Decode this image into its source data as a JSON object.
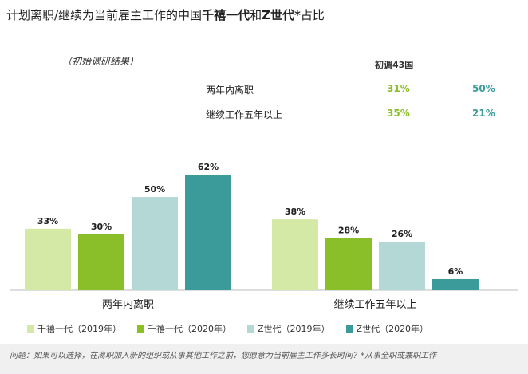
{
  "title": {
    "part1": "计划离职/继续为当前雇主工作的中国",
    "bold1": "千禧一代",
    "part2": "和",
    "bold2": "Z世代*",
    "part3": "占比"
  },
  "subtitle": "（初始调研结果）",
  "summary": {
    "header": "初调43国",
    "rows": [
      {
        "label": "两年内离职",
        "v1": "31%",
        "v2": "50%"
      },
      {
        "label": "继续工作五年以上",
        "v1": "35%",
        "v2": "21%"
      }
    ]
  },
  "chart_data": {
    "type": "bar",
    "categories": [
      "两年内离职",
      "继续工作五年以上"
    ],
    "series": [
      {
        "name": "千禧一代（2019年）",
        "values": [
          33,
          38
        ],
        "color": "#d4e9a6"
      },
      {
        "name": "千禧一代（2020年）",
        "values": [
          30,
          28
        ],
        "color": "#8bbf2a"
      },
      {
        "name": "Z世代（2019年）",
        "values": [
          50,
          26
        ],
        "color": "#b3d8d6"
      },
      {
        "name": "Z世代（2020年）",
        "values": [
          62,
          6
        ],
        "color": "#3b9a9a"
      }
    ],
    "value_suffix": "%",
    "ylim": [
      0,
      65
    ],
    "grid": false,
    "legend_position": "bottom"
  },
  "footnote": "问题：如果可以选择，在离职加入新的组织或从事其他工作之前，您愿意为当前雇主工作多长时间？*从事全职或兼职工作"
}
